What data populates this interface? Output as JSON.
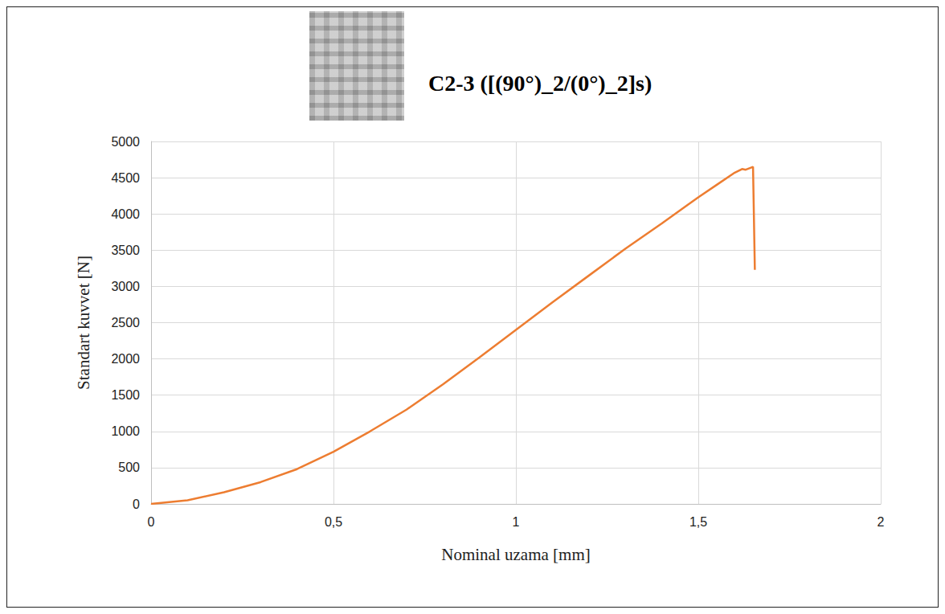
{
  "chart_data": {
    "type": "line",
    "title": "C2-3 ([(90°)_2/(0°)_2]s)",
    "x_label": "Nominal uzama [mm]",
    "y_label": "Standart kuvvet [N]",
    "x": [
      0,
      0.1,
      0.2,
      0.3,
      0.4,
      0.5,
      0.6,
      0.7,
      0.8,
      0.9,
      1.0,
      1.1,
      1.2,
      1.3,
      1.4,
      1.5,
      1.55,
      1.6,
      1.62,
      1.63,
      1.65,
      1.655
    ],
    "values": [
      0,
      50,
      160,
      300,
      480,
      720,
      1000,
      1300,
      1650,
      2020,
      2400,
      2780,
      3150,
      3520,
      3870,
      4230,
      4400,
      4570,
      4620,
      4610,
      4650,
      3230
    ],
    "color": "#ed7d31",
    "marker": "none",
    "xlim": [
      0,
      2
    ],
    "xticks": [
      0,
      {
        "value": 0.5,
        "label": "0,5"
      },
      1,
      {
        "value": 1.5,
        "label": "1,5"
      },
      2
    ],
    "ylim": [
      0,
      5000
    ],
    "yticks": [
      0,
      500,
      1000,
      1500,
      2000,
      2500,
      3000,
      3500,
      4000,
      4500,
      5000
    ],
    "grid": true
  }
}
